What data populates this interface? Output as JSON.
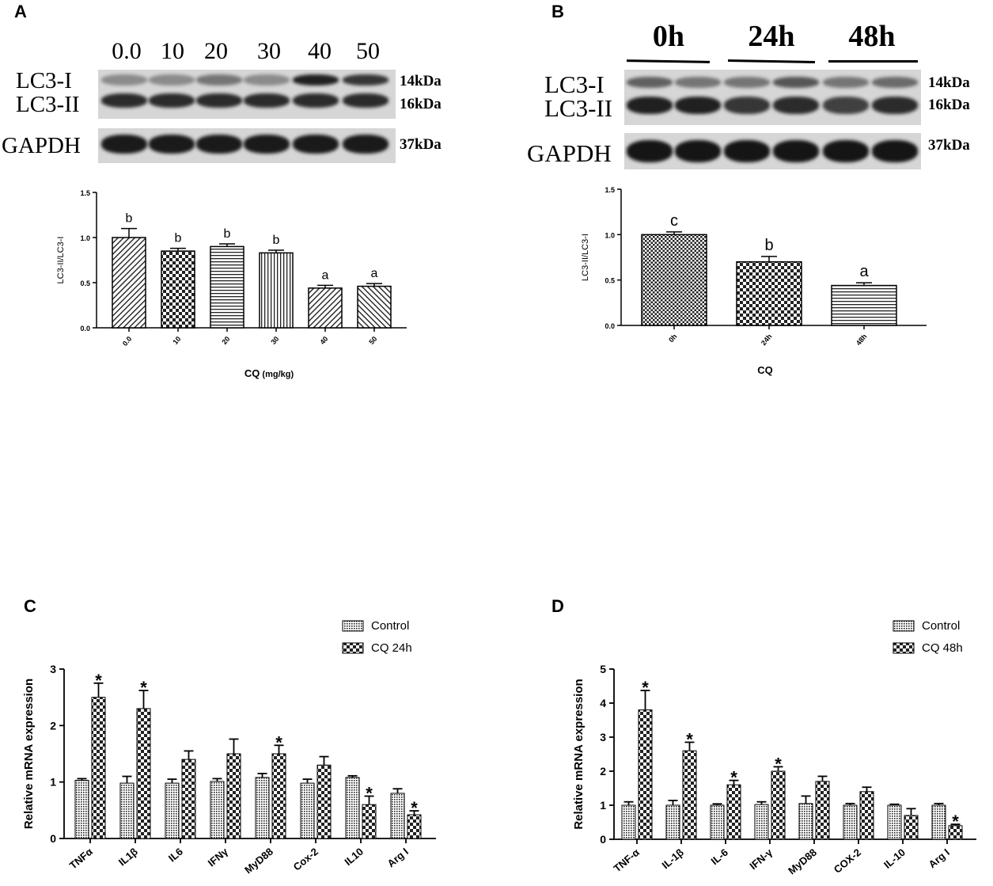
{
  "panels": {
    "a": {
      "letter": "A",
      "lanes": [
        "0.0",
        "10",
        "20",
        "30",
        "40",
        "50"
      ],
      "bands": [
        "LC3-I",
        "LC3-II",
        "GAPDH"
      ],
      "kda": [
        "14kDa",
        "16kDa",
        "37kDa"
      ]
    },
    "b": {
      "letter": "B",
      "lanes": [
        "0h",
        "24h",
        "48h"
      ],
      "bands": [
        "LC3-I",
        "LC3-II",
        "GAPDH"
      ],
      "kda": [
        "14kDa",
        "16kDa",
        "37kDa"
      ]
    },
    "c": {
      "letter": "C"
    },
    "d": {
      "letter": "D"
    }
  },
  "chart_data": [
    {
      "id": "A",
      "type": "bar",
      "categories": [
        "0.0",
        "10",
        "20",
        "30",
        "40",
        "50"
      ],
      "values": [
        1.0,
        0.85,
        0.9,
        0.83,
        0.44,
        0.46
      ],
      "errors": [
        0.1,
        0.03,
        0.03,
        0.03,
        0.03,
        0.03
      ],
      "annotations": [
        "b",
        "b",
        "b",
        "b",
        "a",
        "a"
      ],
      "xlabel": "CQ",
      "xlabel_unit": "(mg/kg)",
      "ylabel": "LC3-II/LC3-I",
      "ylim": [
        0,
        1.5
      ],
      "yticks": [
        "0.0",
        "0.5",
        "1.0",
        "1.5"
      ]
    },
    {
      "id": "B",
      "type": "bar",
      "categories": [
        "0h",
        "24h",
        "48h"
      ],
      "values": [
        1.0,
        0.7,
        0.44
      ],
      "errors": [
        0.03,
        0.06,
        0.03
      ],
      "annotations": [
        "c",
        "b",
        "a"
      ],
      "xlabel": "CQ",
      "ylabel": "LC3-II/LC3-I",
      "ylim": [
        0,
        1.5
      ],
      "yticks": [
        "0.0",
        "0.5",
        "1.0",
        "1.5"
      ]
    },
    {
      "id": "C",
      "type": "bar",
      "categories": [
        "TNFα",
        "IL1β",
        "IL6",
        "IFNγ",
        "MyD88",
        "Cox-2",
        "IL10",
        "Arg I"
      ],
      "series": [
        {
          "name": "Control",
          "values": [
            1.03,
            0.98,
            0.98,
            1.01,
            1.08,
            0.98,
            1.08,
            0.8
          ],
          "errors": [
            0.03,
            0.12,
            0.07,
            0.05,
            0.07,
            0.07,
            0.03,
            0.08
          ]
        },
        {
          "name": "CQ 24h",
          "values": [
            2.5,
            2.3,
            1.4,
            1.5,
            1.5,
            1.3,
            0.6,
            0.42
          ],
          "errors": [
            0.25,
            0.32,
            0.15,
            0.26,
            0.15,
            0.15,
            0.15,
            0.07
          ]
        }
      ],
      "significance": [
        "*",
        "*",
        "",
        "",
        "*",
        "",
        "*",
        "*"
      ],
      "ylabel": "Relative mRNA expression",
      "ylim": [
        0,
        3
      ],
      "yticks": [
        "0",
        "1",
        "2",
        "3"
      ],
      "legend": "top-right"
    },
    {
      "id": "D",
      "type": "bar",
      "categories": [
        "TNF-α",
        "IL-1β",
        "IL-6",
        "IFN-γ",
        "MyD88",
        "COX-2",
        "IL-10",
        "Arg I"
      ],
      "series": [
        {
          "name": "Control",
          "values": [
            1.0,
            1.0,
            1.0,
            1.02,
            1.05,
            1.0,
            1.0,
            1.0
          ],
          "errors": [
            0.1,
            0.14,
            0.04,
            0.08,
            0.22,
            0.05,
            0.03,
            0.05
          ]
        },
        {
          "name": "CQ 48h",
          "values": [
            3.8,
            2.6,
            1.6,
            2.0,
            1.7,
            1.4,
            0.7,
            0.4
          ],
          "errors": [
            0.57,
            0.25,
            0.13,
            0.13,
            0.15,
            0.13,
            0.2,
            0.04
          ]
        }
      ],
      "significance": [
        "*",
        "*",
        "*",
        "*",
        "",
        "",
        "",
        "*"
      ],
      "ylabel": "Relative mRNA expression",
      "ylim": [
        0,
        5
      ],
      "yticks": [
        "0",
        "1",
        "2",
        "3",
        "4",
        "5"
      ],
      "legend": "top-right"
    }
  ]
}
